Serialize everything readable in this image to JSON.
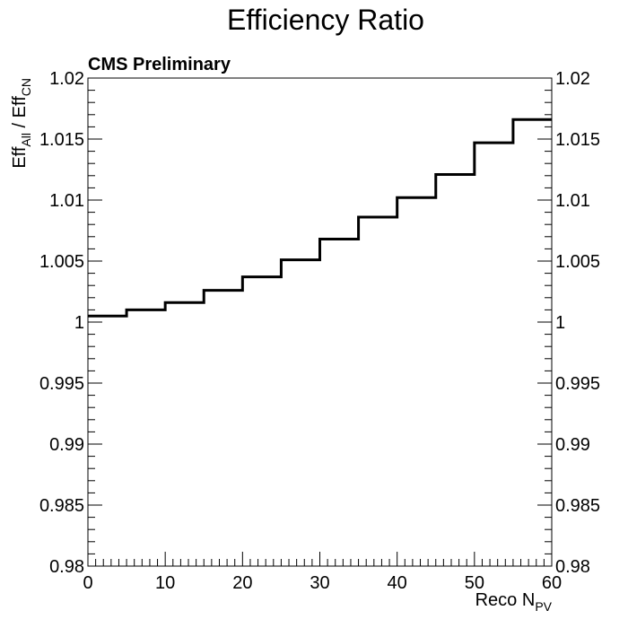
{
  "chart_data": {
    "type": "line",
    "style": "step-histogram",
    "title": "Efficiency Ratio",
    "label": "CMS Preliminary",
    "xlabel": {
      "main": "Reco N",
      "sub": "PV"
    },
    "ylabel": {
      "a": "Eff",
      "a_sub": "All",
      "sep": " / ",
      "b": "Eff",
      "b_sub": "CN"
    },
    "xlim": [
      0,
      60
    ],
    "ylim": [
      0.98,
      1.02
    ],
    "x_ticks": [
      "0",
      "10",
      "20",
      "30",
      "40",
      "50",
      "60"
    ],
    "x_tick_values": [
      0,
      10,
      20,
      30,
      40,
      50,
      60
    ],
    "y_ticks": [
      "0.98",
      "0.985",
      "0.99",
      "0.995",
      "1",
      "1.005",
      "1.01",
      "1.015",
      "1.02"
    ],
    "y_tick_values": [
      0.98,
      0.985,
      0.99,
      0.995,
      1.0,
      1.005,
      1.01,
      1.015,
      1.02
    ],
    "grid": false,
    "line_color": "#000000",
    "bins": [
      {
        "x0": 0,
        "x1": 5,
        "y": 1.0005
      },
      {
        "x0": 5,
        "x1": 10,
        "y": 1.001
      },
      {
        "x0": 10,
        "x1": 15,
        "y": 1.0016
      },
      {
        "x0": 15,
        "x1": 20,
        "y": 1.0026
      },
      {
        "x0": 20,
        "x1": 25,
        "y": 1.0037
      },
      {
        "x0": 25,
        "x1": 30,
        "y": 1.0051
      },
      {
        "x0": 30,
        "x1": 35,
        "y": 1.0068
      },
      {
        "x0": 35,
        "x1": 40,
        "y": 1.0086
      },
      {
        "x0": 40,
        "x1": 45,
        "y": 1.0102
      },
      {
        "x0": 45,
        "x1": 50,
        "y": 1.0121
      },
      {
        "x0": 50,
        "x1": 55,
        "y": 1.0147
      },
      {
        "x0": 55,
        "x1": 60,
        "y": 1.0166
      }
    ]
  }
}
